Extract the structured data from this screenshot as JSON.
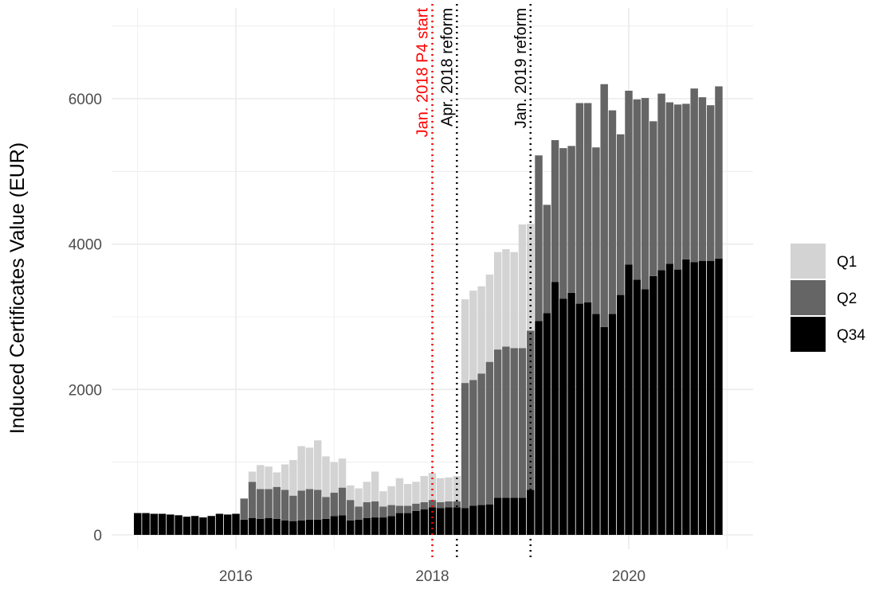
{
  "chart_data": {
    "type": "bar",
    "stacked": true,
    "ylabel": "Induced Certificates Value (EUR)",
    "xlabel": "",
    "x_ticks": [
      "2016",
      "2018",
      "2020"
    ],
    "y_ticks": [
      "0",
      "2000",
      "4000",
      "6000"
    ],
    "ylim": [
      0,
      7100
    ],
    "grid": true,
    "legend_position": "right",
    "months": [
      "2015-01",
      "2015-02",
      "2015-03",
      "2015-04",
      "2015-05",
      "2015-06",
      "2015-07",
      "2015-08",
      "2015-09",
      "2015-10",
      "2015-11",
      "2015-12",
      "2016-01",
      "2016-02",
      "2016-03",
      "2016-04",
      "2016-05",
      "2016-06",
      "2016-07",
      "2016-08",
      "2016-09",
      "2016-10",
      "2016-11",
      "2016-12",
      "2017-01",
      "2017-02",
      "2017-03",
      "2017-04",
      "2017-05",
      "2017-06",
      "2017-07",
      "2017-08",
      "2017-09",
      "2017-10",
      "2017-11",
      "2017-12",
      "2018-01",
      "2018-02",
      "2018-03",
      "2018-04",
      "2018-05",
      "2018-06",
      "2018-07",
      "2018-08",
      "2018-09",
      "2018-10",
      "2018-11",
      "2018-12",
      "2019-01",
      "2019-02",
      "2019-03",
      "2019-04",
      "2019-05",
      "2019-06",
      "2019-07",
      "2019-08",
      "2019-09",
      "2019-10",
      "2019-11",
      "2019-12",
      "2020-01",
      "2020-02",
      "2020-03",
      "2020-04",
      "2020-05",
      "2020-06",
      "2020-07",
      "2020-08",
      "2020-09",
      "2020-10",
      "2020-11",
      "2020-12"
    ],
    "series": [
      {
        "name": "Q34",
        "color": "#000000",
        "values": [
          300,
          300,
          290,
          290,
          280,
          270,
          250,
          260,
          240,
          260,
          290,
          280,
          290,
          210,
          230,
          220,
          230,
          220,
          200,
          190,
          200,
          210,
          210,
          220,
          260,
          270,
          200,
          210,
          230,
          240,
          240,
          260,
          300,
          300,
          330,
          350,
          380,
          370,
          380,
          380,
          370,
          400,
          410,
          420,
          510,
          510,
          510,
          510,
          620,
          2940,
          3050,
          3480,
          3250,
          3330,
          3180,
          3200,
          3040,
          2860,
          3040,
          3300,
          3720,
          3510,
          3380,
          3560,
          3640,
          3730,
          3650,
          3790,
          3750,
          3770,
          3770,
          3800
        ]
      },
      {
        "name": "Q2",
        "color": "#656565",
        "values": [
          0,
          0,
          0,
          0,
          0,
          0,
          0,
          0,
          0,
          0,
          0,
          0,
          0,
          290,
          500,
          410,
          400,
          440,
          420,
          350,
          410,
          420,
          410,
          300,
          320,
          380,
          280,
          180,
          220,
          220,
          150,
          150,
          100,
          100,
          100,
          100,
          100,
          80,
          80,
          80,
          1720,
          1730,
          1810,
          1960,
          2040,
          2080,
          2060,
          2060,
          2190,
          2280,
          1490,
          1950,
          2070,
          2020,
          2760,
          2740,
          2290,
          3340,
          2800,
          2210,
          2390,
          2480,
          2630,
          2130,
          2430,
          2220,
          2270,
          2140,
          2390,
          2250,
          2140,
          2370
        ]
      },
      {
        "name": "Q1",
        "color": "#d3d3d3",
        "values": [
          0,
          0,
          0,
          0,
          0,
          0,
          0,
          0,
          0,
          0,
          0,
          0,
          0,
          0,
          0,
          0,
          0,
          0,
          0,
          0,
          0,
          0,
          0,
          0,
          0,
          0,
          0,
          0,
          0,
          0,
          0,
          0,
          0,
          0,
          0,
          0,
          0,
          0,
          0,
          0,
          1150,
          1230,
          1200,
          1200,
          1340,
          1340,
          1320,
          1700,
          1470,
          0,
          0,
          0,
          0,
          0,
          0,
          0,
          0,
          0,
          0,
          0,
          0,
          0,
          0,
          0,
          0,
          0,
          0,
          0,
          0,
          0,
          0,
          0
        ]
      }
    ],
    "q1_early": [
      0,
      0,
      0,
      0,
      0,
      0,
      0,
      0,
      0,
      0,
      0,
      0,
      0,
      0,
      140,
      330,
      310,
      200,
      350,
      490,
      610,
      570,
      680,
      560,
      420,
      400,
      200,
      250,
      280,
      410,
      210,
      260,
      380,
      300,
      300,
      360,
      370,
      330,
      330,
      350,
      0,
      0,
      0,
      0,
      0,
      0,
      0,
      0,
      0,
      0,
      0,
      0,
      0,
      0,
      0,
      0,
      0,
      0,
      0,
      0,
      0,
      0,
      0,
      0,
      0,
      0,
      0,
      0,
      0,
      0,
      0,
      0
    ],
    "annotations": [
      {
        "label": "Jan. 2018 P4 start",
        "date": "2018-01",
        "color": "#ff0000"
      },
      {
        "label": "Apr. 2018 reform",
        "date": "2018-04",
        "color": "#000000"
      },
      {
        "label": "Jan. 2019 reform",
        "date": "2019-01",
        "color": "#000000"
      }
    ]
  },
  "legend": [
    {
      "label": "Q1",
      "color": "#d3d3d3"
    },
    {
      "label": "Q2",
      "color": "#656565"
    },
    {
      "label": "Q34",
      "color": "#000000"
    }
  ]
}
